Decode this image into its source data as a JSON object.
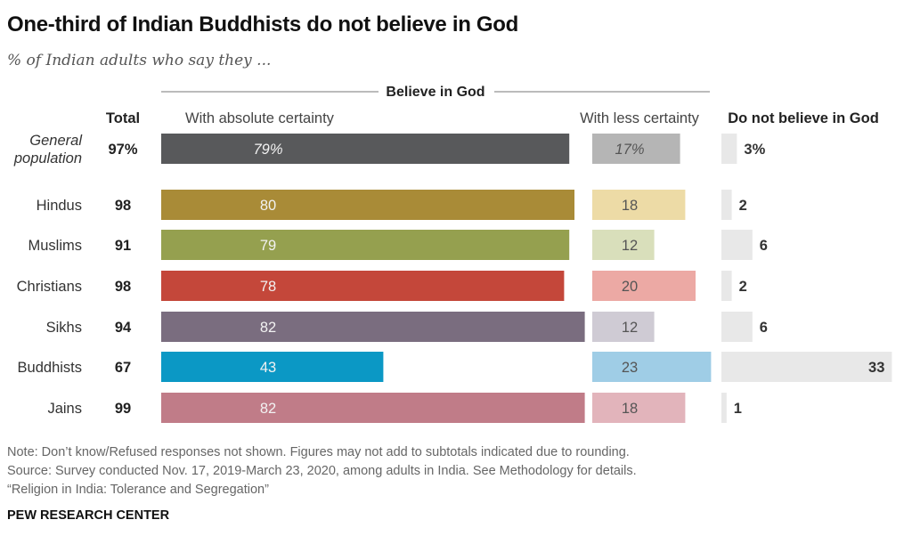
{
  "title": "One-third of Indian Buddhists do not believe in God",
  "subtitle": "% of Indian adults who say they ...",
  "notes": [
    "Note: Don’t know/Refused responses not shown. Figures may not add to subtotals indicated due to rounding.",
    "Source: Survey conducted Nov. 17, 2019-March 23, 2020, among adults in India. See Methodology for details.",
    "“Religion in India: Tolerance and Segregation”"
  ],
  "source_org": "PEW RESEARCH CENTER",
  "chart_data": {
    "type": "bar",
    "orientation": "horizontal",
    "stacked": false,
    "group_header": "Believe in God",
    "column_headers": {
      "total": "Total",
      "absolute": "With absolute certainty",
      "less": "With less certainty",
      "not": "Do not believe in God"
    },
    "categories": [
      "General population",
      "Hindus",
      "Muslims",
      "Christians",
      "Sikhs",
      "Buddhists",
      "Jains"
    ],
    "total": [
      97,
      98,
      91,
      98,
      94,
      67,
      99
    ],
    "series": [
      {
        "key": "absolute",
        "values": [
          79,
          80,
          79,
          78,
          82,
          43,
          82
        ]
      },
      {
        "key": "less",
        "values": [
          17,
          18,
          12,
          20,
          12,
          23,
          18
        ]
      },
      {
        "key": "not",
        "values": [
          3,
          2,
          6,
          2,
          6,
          33,
          1
        ]
      }
    ],
    "first_row_shows_percent": true,
    "colors": {
      "absolute": [
        "#58595b",
        "#a98b37",
        "#95a04f",
        "#c4473a",
        "#7a6d7f",
        "#0b98c5",
        "#c07c88"
      ],
      "less": [
        "#b5b5b5",
        "#eddba6",
        "#d9dfbb",
        "#eca9a4",
        "#cfcbd4",
        "#9fcde6",
        "#e2b4bb"
      ],
      "not": "#e8e8e8",
      "absolute_label": "#f2f2f2",
      "less_label": "#555555",
      "not_label": "#333333"
    }
  }
}
